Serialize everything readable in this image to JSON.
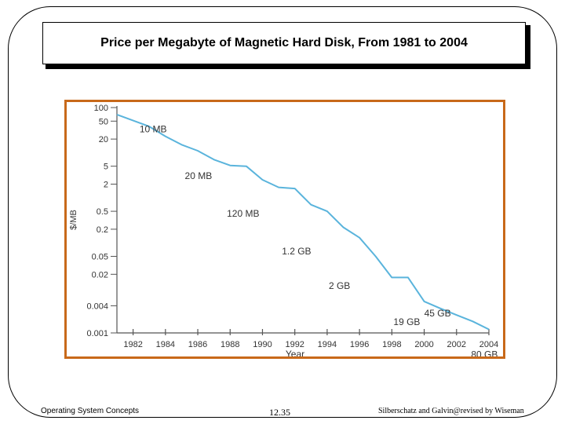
{
  "slide": {
    "title": "Price per Megabyte of Magnetic Hard Disk, From 1981 to 2004",
    "footer_left": "Operating System Concepts",
    "footer_page": "12.35",
    "footer_right": "Silberschatz and Galvin@revised by Wiseman"
  },
  "colors": {
    "frame": "#c8691a",
    "line": "#5ab4dc",
    "axis": "#555555"
  },
  "chart_data": {
    "type": "line",
    "title": "",
    "xlabel": "Year",
    "ylabel": "$/MB",
    "yscale": "log",
    "ylim": [
      0.001,
      100
    ],
    "xlim": [
      1981,
      2004
    ],
    "x_ticks": [
      1982,
      1984,
      1986,
      1988,
      1990,
      1992,
      1994,
      1996,
      1998,
      2000,
      2002,
      2004
    ],
    "y_ticks": [
      {
        "value": 100,
        "label": "100"
      },
      {
        "value": 50,
        "label": "50"
      },
      {
        "value": 20,
        "label": "20"
      },
      {
        "value": 5,
        "label": "5"
      },
      {
        "value": 2,
        "label": "2"
      },
      {
        "value": 0.5,
        "label": "0.5"
      },
      {
        "value": 0.2,
        "label": "0.2"
      },
      {
        "value": 0.05,
        "label": "0.05"
      },
      {
        "value": 0.02,
        "label": "0.02"
      },
      {
        "value": 0.004,
        "label": "0.004"
      },
      {
        "value": 0.001,
        "label": "0.001"
      }
    ],
    "series": [
      {
        "name": "$/MB",
        "x": [
          1981,
          1983,
          1984,
          1985,
          1986,
          1987,
          1988,
          1989,
          1990,
          1991,
          1992,
          1993,
          1994,
          1995,
          1996,
          1997,
          1998,
          1999,
          2000,
          2001,
          2002,
          2003,
          2004
        ],
        "y": [
          70,
          38,
          23,
          15,
          11,
          7,
          5.2,
          5,
          2.5,
          1.7,
          1.6,
          0.7,
          0.5,
          0.22,
          0.13,
          0.05,
          0.017,
          0.017,
          0.005,
          0.0035,
          0.0025,
          0.0018,
          0.0012
        ]
      }
    ],
    "annotations": [
      {
        "text": "10 MB",
        "x": 1982.4,
        "y": 28
      },
      {
        "text": "20 MB",
        "x": 1985.2,
        "y": 2.6
      },
      {
        "text": "120 MB",
        "x": 1987.8,
        "y": 0.38
      },
      {
        "text": "1.2 GB",
        "x": 1991.2,
        "y": 0.055
      },
      {
        "text": "2 GB",
        "x": 1994.1,
        "y": 0.0095
      },
      {
        "text": "19 GB",
        "x": 1998.1,
        "y": 0.0015
      },
      {
        "text": "45 GB",
        "x": 2000.0,
        "y": 0.0023
      },
      {
        "text": "80 GB",
        "x": 2002.9,
        "y": 0.00028
      }
    ]
  }
}
